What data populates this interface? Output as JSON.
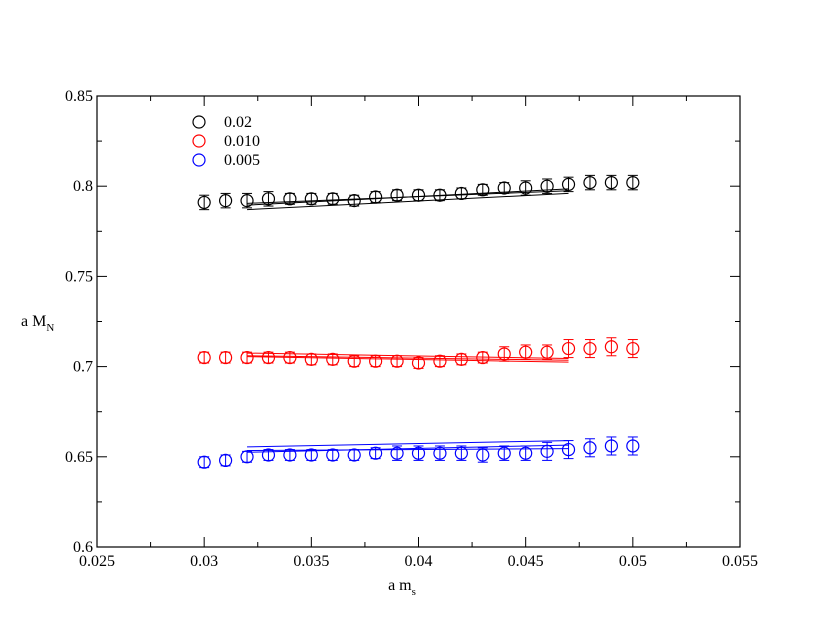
{
  "chart_data": {
    "type": "scatter",
    "title": "",
    "xlabel": "a m",
    "xlabel_sub": "s",
    "ylabel": "a M",
    "ylabel_sub": "N",
    "xlim": [
      0.025,
      0.055
    ],
    "ylim": [
      0.6,
      0.85
    ],
    "xticks": [
      0.025,
      0.03,
      0.035,
      0.04,
      0.045,
      0.05,
      0.055
    ],
    "xtick_labels": [
      "0.025",
      "0.03",
      "0.035",
      "0.04",
      "0.045",
      "0.05",
      "0.055"
    ],
    "yticks": [
      0.6,
      0.65,
      0.7,
      0.75,
      0.8,
      0.85
    ],
    "ytick_labels": [
      "0.6",
      "0.65",
      "0.7",
      "0.75",
      "0.8",
      "0.85"
    ],
    "grid": false,
    "legend_position": "top-left",
    "series": [
      {
        "name": "0.02",
        "color": "#000000",
        "x": [
          0.03,
          0.031,
          0.032,
          0.033,
          0.034,
          0.035,
          0.036,
          0.037,
          0.038,
          0.039,
          0.04,
          0.041,
          0.042,
          0.043,
          0.044,
          0.045,
          0.046,
          0.047,
          0.048,
          0.049,
          0.05
        ],
        "y": [
          0.791,
          0.792,
          0.792,
          0.793,
          0.793,
          0.793,
          0.793,
          0.792,
          0.794,
          0.795,
          0.795,
          0.795,
          0.796,
          0.798,
          0.799,
          0.799,
          0.8,
          0.801,
          0.802,
          0.802,
          0.802
        ],
        "err": [
          0.004,
          0.004,
          0.004,
          0.004,
          0.003,
          0.003,
          0.003,
          0.003,
          0.003,
          0.003,
          0.003,
          0.003,
          0.003,
          0.003,
          0.003,
          0.004,
          0.004,
          0.004,
          0.004,
          0.004,
          0.004
        ],
        "fit_lines": [
          {
            "x": [
              0.032,
              0.047
            ],
            "y": [
              0.7895,
              0.7985
            ]
          },
          {
            "x": [
              0.032,
              0.047
            ],
            "y": [
              0.787,
              0.796
            ]
          },
          {
            "x": [
              0.032,
              0.047
            ],
            "y": [
              0.7905,
              0.7975
            ]
          }
        ]
      },
      {
        "name": "0.010",
        "color": "#ff0000",
        "x": [
          0.03,
          0.031,
          0.032,
          0.033,
          0.034,
          0.035,
          0.036,
          0.037,
          0.038,
          0.039,
          0.04,
          0.041,
          0.042,
          0.043,
          0.044,
          0.045,
          0.046,
          0.047,
          0.048,
          0.049,
          0.05
        ],
        "y": [
          0.705,
          0.705,
          0.705,
          0.705,
          0.705,
          0.704,
          0.704,
          0.703,
          0.703,
          0.703,
          0.702,
          0.703,
          0.704,
          0.705,
          0.707,
          0.708,
          0.708,
          0.71,
          0.71,
          0.711,
          0.71
        ],
        "err": [
          0.003,
          0.003,
          0.003,
          0.003,
          0.003,
          0.003,
          0.003,
          0.003,
          0.003,
          0.003,
          0.003,
          0.003,
          0.003,
          0.003,
          0.004,
          0.004,
          0.004,
          0.005,
          0.005,
          0.005,
          0.005
        ],
        "fit_lines": [
          {
            "x": [
              0.032,
              0.047
            ],
            "y": [
              0.7075,
              0.7045
            ]
          },
          {
            "x": [
              0.032,
              0.047
            ],
            "y": [
              0.7055,
              0.7025
            ]
          },
          {
            "x": [
              0.032,
              0.047
            ],
            "y": [
              0.706,
              0.7035
            ]
          }
        ]
      },
      {
        "name": "0.005",
        "color": "#0000ff",
        "x": [
          0.03,
          0.031,
          0.032,
          0.033,
          0.034,
          0.035,
          0.036,
          0.037,
          0.038,
          0.039,
          0.04,
          0.041,
          0.042,
          0.043,
          0.044,
          0.045,
          0.046,
          0.047,
          0.048,
          0.049,
          0.05
        ],
        "y": [
          0.647,
          0.648,
          0.65,
          0.651,
          0.651,
          0.651,
          0.651,
          0.651,
          0.652,
          0.652,
          0.652,
          0.652,
          0.652,
          0.651,
          0.652,
          0.652,
          0.653,
          0.654,
          0.655,
          0.656,
          0.656
        ],
        "err": [
          0.003,
          0.003,
          0.003,
          0.003,
          0.003,
          0.003,
          0.003,
          0.003,
          0.003,
          0.004,
          0.004,
          0.004,
          0.004,
          0.004,
          0.004,
          0.004,
          0.005,
          0.005,
          0.005,
          0.005,
          0.005
        ],
        "fit_lines": [
          {
            "x": [
              0.032,
              0.047
            ],
            "y": [
              0.6555,
              0.659
            ]
          },
          {
            "x": [
              0.032,
              0.047
            ],
            "y": [
              0.6525,
              0.6565
            ]
          },
          {
            "x": [
              0.032,
              0.047
            ],
            "y": [
              0.6535,
              0.6545
            ]
          }
        ]
      }
    ]
  }
}
